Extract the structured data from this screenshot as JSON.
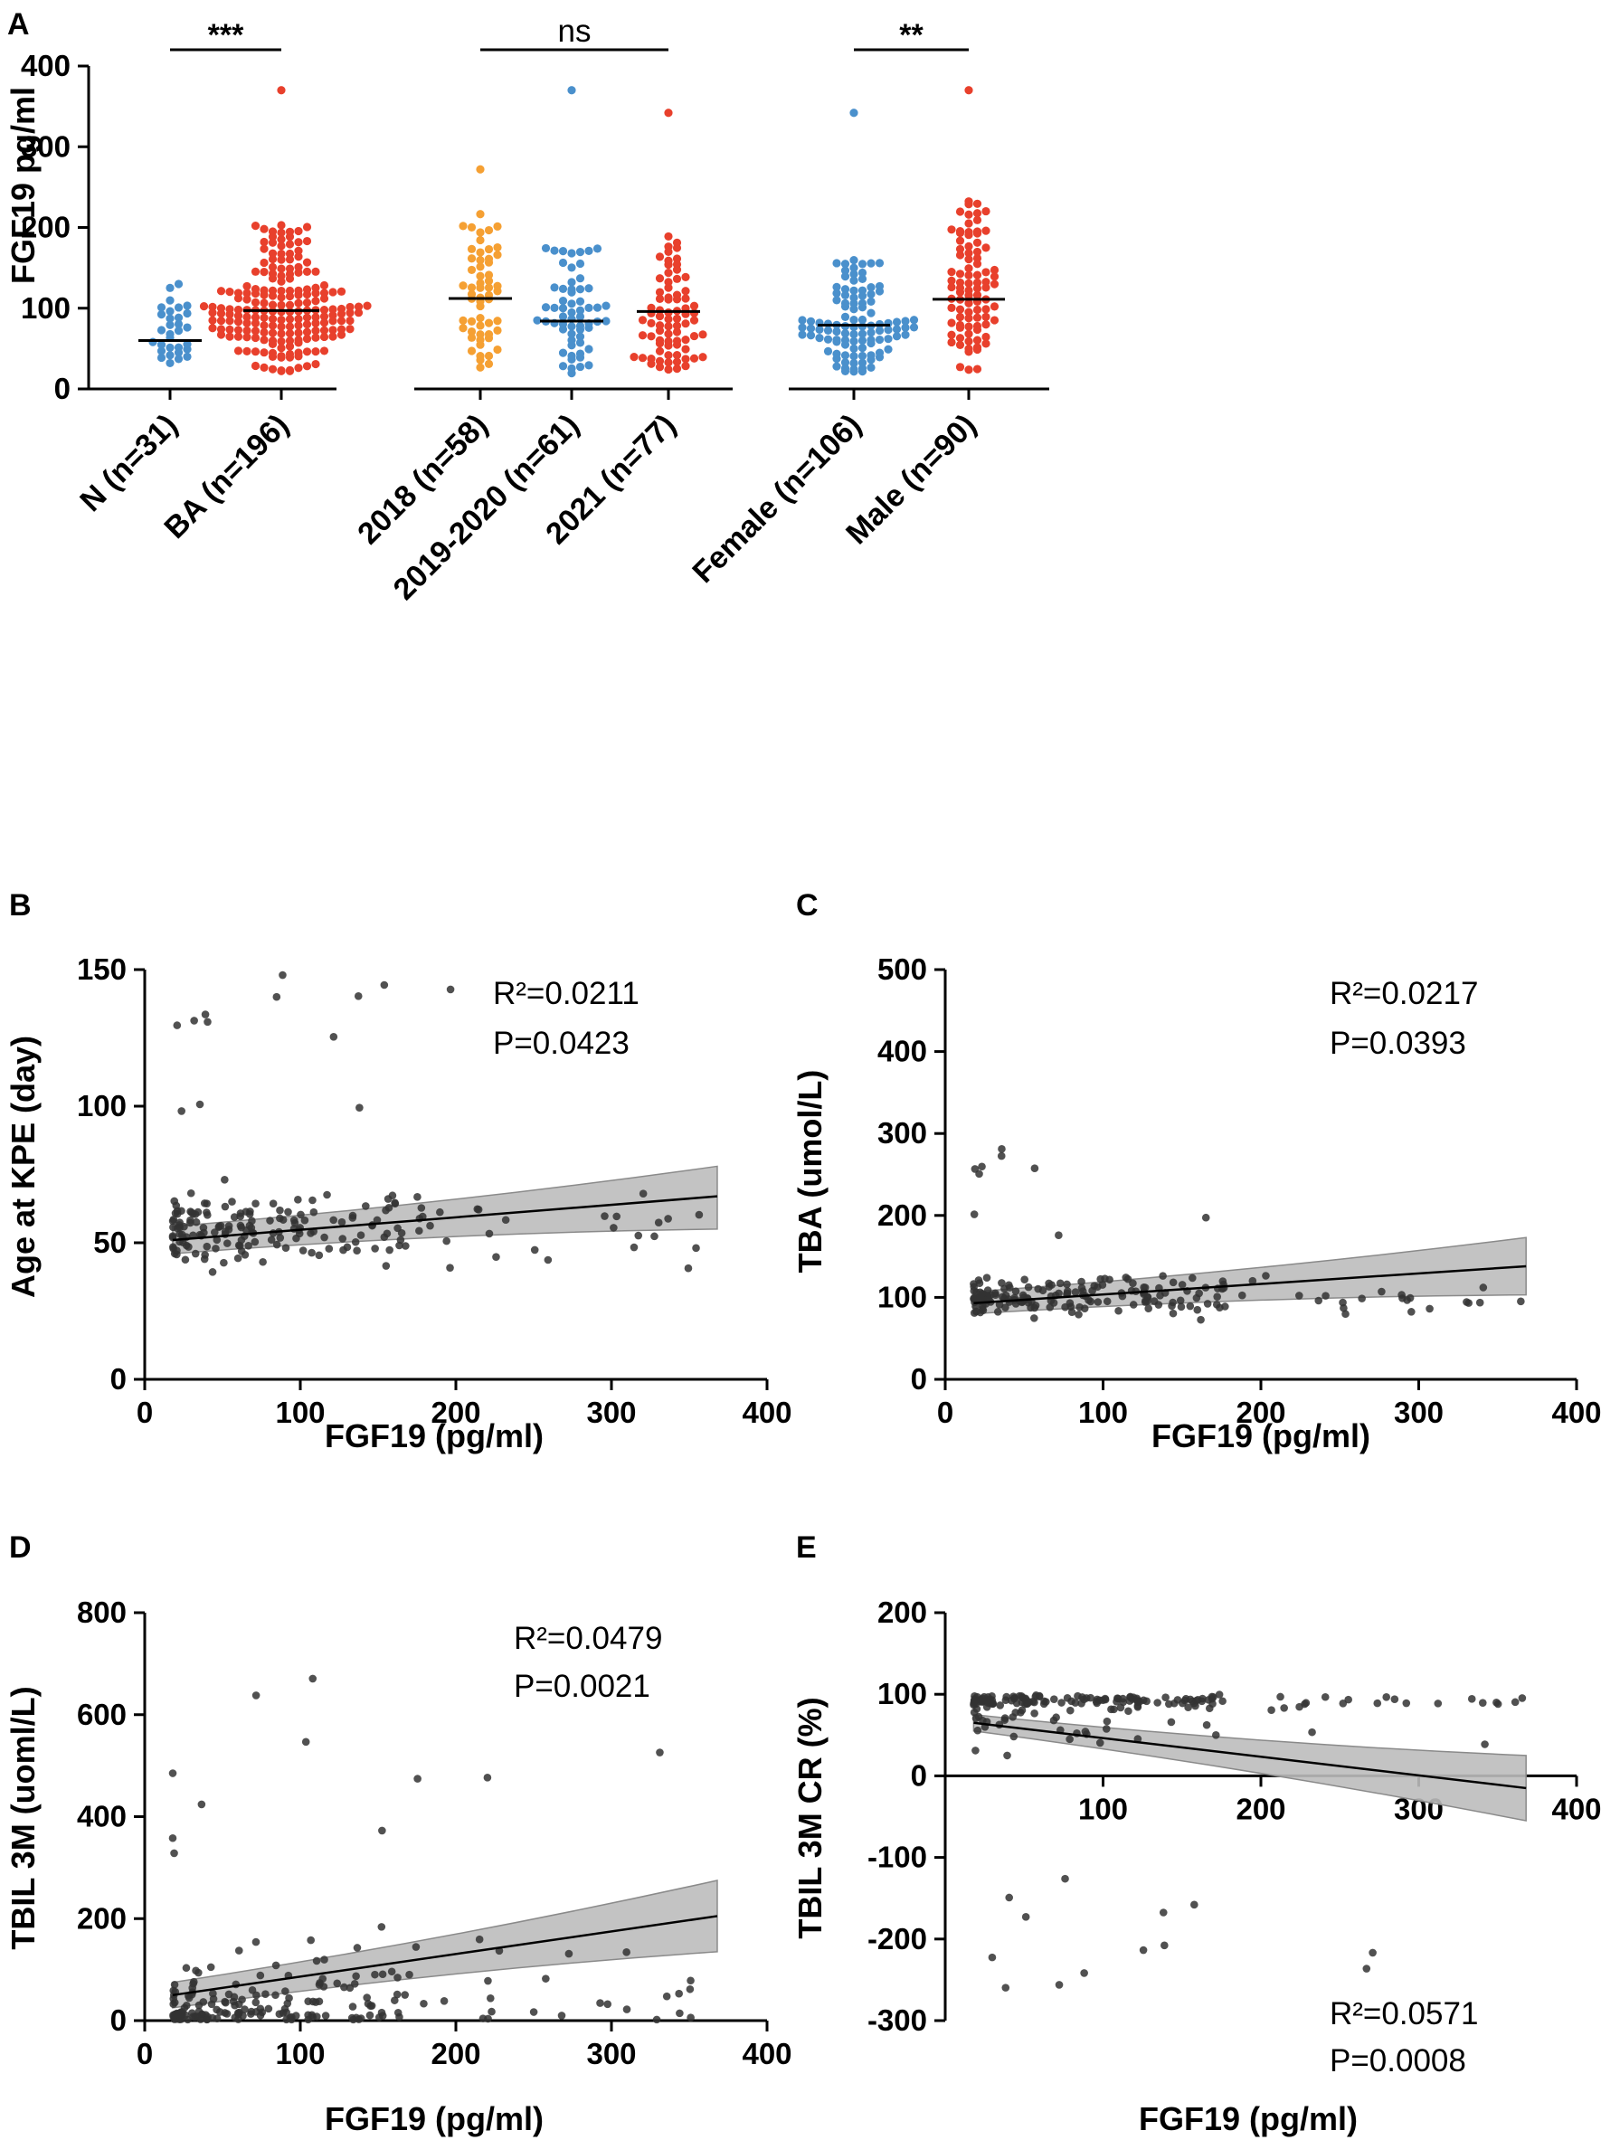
{
  "colors": {
    "blue": "#4a90cc",
    "red": "#e8402c",
    "orange": "#f5a033",
    "scatter": "#333333",
    "band": "#bdbdbd"
  },
  "chart_data": [
    {
      "id": "A",
      "type": "scatter",
      "panel_label": "A",
      "ylabel": "FGF19 pg/ml",
      "ylim": [
        0,
        400
      ],
      "yticks": [
        0,
        100,
        200,
        300,
        400
      ],
      "groups": [
        {
          "category": "N (n=31)",
          "color": "blue",
          "n": 31,
          "median": 60,
          "min": 20,
          "max": 130
        },
        {
          "category": "BA (n=196)",
          "color": "red",
          "n": 196,
          "median": 97,
          "min": 20,
          "max": 370
        },
        {
          "category": "2018 (n=58)",
          "color": "orange",
          "n": 58,
          "median": 112,
          "min": 18,
          "max": 272
        },
        {
          "category": "2019-2020 (n=61)",
          "color": "blue",
          "n": 61,
          "median": 84,
          "min": 18,
          "max": 370
        },
        {
          "category": "2021 (n=77)",
          "color": "red",
          "n": 77,
          "median": 96,
          "min": 20,
          "max": 342
        },
        {
          "category": "Female (n=106)",
          "color": "blue",
          "n": 106,
          "median": 79,
          "min": 20,
          "max": 342
        },
        {
          "category": "Male (n=90)",
          "color": "red",
          "n": 90,
          "median": 111,
          "min": 20,
          "max": 370
        }
      ],
      "comparisons": [
        {
          "label": "***",
          "from": "N (n=31)",
          "to": "BA (n=196)"
        },
        {
          "label": "ns",
          "from": "2018 (n=58)",
          "to": "2021 (n=77)"
        },
        {
          "label": "**",
          "from": "Female (n=106)",
          "to": "Male (n=90)"
        }
      ]
    },
    {
      "id": "B",
      "type": "scatter",
      "panel_label": "B",
      "xlabel": "FGF19 (pg/ml)",
      "ylabel": "Age at KPE (day)",
      "xlim": [
        0,
        400
      ],
      "ylim": [
        0,
        150
      ],
      "xticks": [
        0,
        100,
        200,
        300,
        400
      ],
      "yticks": [
        0,
        50,
        100,
        150
      ],
      "r2": "R²=0.0211",
      "p": "P=0.0423",
      "fit": {
        "x0": 18,
        "y0": 51,
        "x1": 368,
        "y1": 67
      },
      "band": {
        "lower0": 46,
        "upper0": 56,
        "lower1": 55,
        "upper1": 78
      },
      "y_center": 55,
      "y_spread": 18
    },
    {
      "id": "C",
      "type": "scatter",
      "panel_label": "C",
      "xlabel": "FGF19 (pg/ml)",
      "ylabel": "TBA (umol/L)",
      "xlim": [
        0,
        400
      ],
      "ylim": [
        0,
        500
      ],
      "xticks": [
        0,
        100,
        200,
        300,
        400
      ],
      "yticks": [
        0,
        100,
        200,
        300,
        400,
        500
      ],
      "r2": "R²=0.0217",
      "p": "P=0.0393",
      "fit": {
        "x0": 18,
        "y0": 93,
        "x1": 368,
        "y1": 138
      },
      "band": {
        "lower0": 80,
        "upper0": 107,
        "lower1": 103,
        "upper1": 173
      },
      "y_center": 100,
      "y_spread": 35
    },
    {
      "id": "D",
      "type": "scatter",
      "panel_label": "D",
      "xlabel": "FGF19 (pg/ml)",
      "ylabel": "TBIL 3M (uoml/L)",
      "xlim": [
        0,
        400
      ],
      "ylim": [
        0,
        800
      ],
      "xticks": [
        0,
        100,
        200,
        300,
        400
      ],
      "yticks": [
        0,
        200,
        400,
        600,
        800
      ],
      "r2": "R²=0.0479",
      "p": "P=0.0021",
      "fit": {
        "x0": 18,
        "y0": 50,
        "x1": 368,
        "y1": 205
      },
      "band": {
        "lower0": 25,
        "upper0": 75,
        "lower1": 135,
        "upper1": 275
      },
      "y_center": 40,
      "y_spread": 120
    },
    {
      "id": "E",
      "type": "scatter",
      "panel_label": "E",
      "xlabel": "FGF19 (pg/ml)",
      "ylabel": "TBIL 3M CR (%)",
      "xlim": [
        0,
        400
      ],
      "ylim": [
        -300,
        200
      ],
      "xticks": [
        100,
        200,
        300,
        400
      ],
      "yticks": [
        -300,
        -200,
        -100,
        0,
        100,
        200
      ],
      "r2": "R²=0.0571",
      "p": "P=0.0008",
      "fit": {
        "x0": 18,
        "y0": 65,
        "x1": 368,
        "y1": -15
      },
      "band": {
        "lower0": 55,
        "upper0": 75,
        "lower1": -55,
        "upper1": 25
      },
      "y_center": 90,
      "y_spread": 40
    }
  ]
}
